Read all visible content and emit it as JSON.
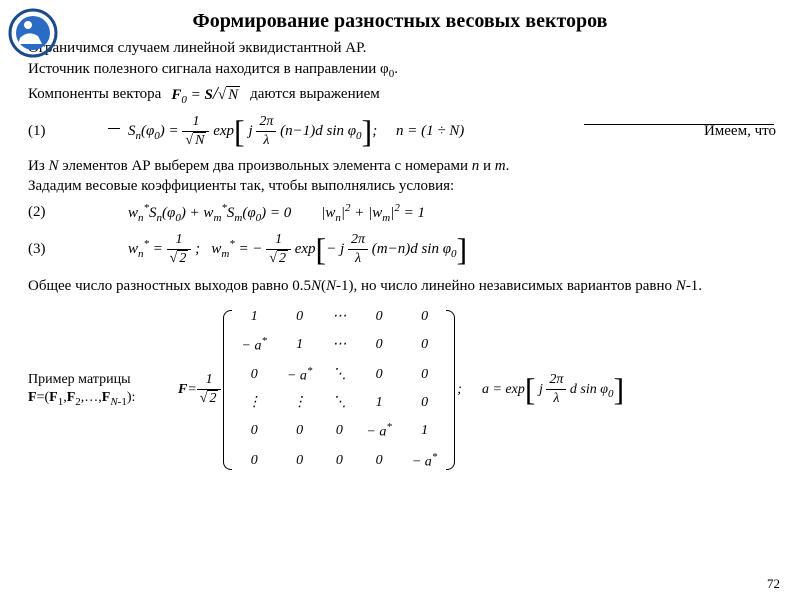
{
  "title": "Формирование разностных весовых векторов",
  "text": {
    "line1": "Ограничимся случаем линейной эквидистантной АР.",
    "line2_a": "Источник полезного сигнала находится в направлении φ",
    "line2_sub": "0",
    "line2_b": ".",
    "line3_a": "Компоненты вектора",
    "line3_b": "даются выражением",
    "line4": "Имеем, что",
    "line5_a": "Из ",
    "line5_b": " элементов АР выберем два произвольных элемента с номерами ",
    "line5_c": " и ",
    "line5_d": ".",
    "line6": "Зададим весовые коэффициенты так, чтобы выполнялись условия:",
    "line7_a": "Общее число разностных выходов равно 0.5",
    "line7_b": "(",
    "line7_c": "-1), но число линейно независимых вариантов равно ",
    "line7_d": "-1.",
    "matrix_label1": "Пример матрицы",
    "matrix_label2_a": "F",
    "matrix_label2_b": "=(",
    "matrix_label2_c": ",",
    "matrix_label2_d": ",…,",
    "matrix_label2_e": "):"
  },
  "symbols": {
    "N": "N",
    "n": "n",
    "m": "m",
    "F": "F",
    "S": "S",
    "phi": "φ",
    "lambda": "λ",
    "pi": "π",
    "j": "j",
    "d": "d",
    "w": "w",
    "a": "a",
    "sin": "sin",
    "exp": "exp"
  },
  "eq_labels": {
    "e1": "(1)",
    "e2": "(2)",
    "e3": "(3)"
  },
  "matrix": {
    "rows": [
      [
        "1",
        "0",
        "⋯",
        "0",
        "0"
      ],
      [
        "− a*",
        "1",
        "⋯",
        "0",
        "0"
      ],
      [
        "0",
        "− a*",
        "⋱",
        "0",
        "0"
      ],
      [
        "⋮",
        "⋮",
        "⋱",
        "1",
        "0"
      ],
      [
        "0",
        "0",
        "0",
        "− a*",
        "1"
      ],
      [
        "0",
        "0",
        "0",
        "0",
        "− a*"
      ]
    ]
  },
  "page": "72",
  "colors": {
    "logo_ring": "#1a4b8c",
    "logo_fill": "#2a6bc4"
  }
}
